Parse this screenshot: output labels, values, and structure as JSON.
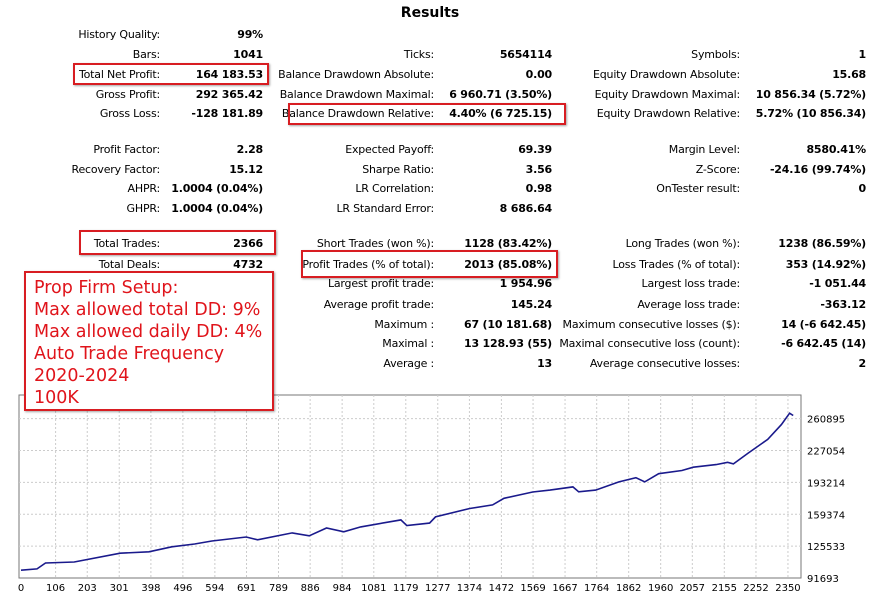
{
  "title": "Results",
  "stats": [
    [
      {
        "label": "History Quality:",
        "value": "99%"
      },
      null,
      null
    ],
    [
      {
        "label": "Bars:",
        "value": "1041"
      },
      {
        "label": "Ticks:",
        "value": "5654114"
      },
      {
        "label": "Symbols:",
        "value": "1"
      }
    ],
    [
      {
        "label": "Total Net Profit:",
        "value": "164 183.53"
      },
      {
        "label": "Balance Drawdown Absolute:",
        "value": "0.00"
      },
      {
        "label": "Equity Drawdown Absolute:",
        "value": "15.68"
      }
    ],
    [
      {
        "label": "Gross Profit:",
        "value": "292 365.42"
      },
      {
        "label": "Balance Drawdown Maximal:",
        "value": "6 960.71 (3.50%)"
      },
      {
        "label": "Equity Drawdown Maximal:",
        "value": "10 856.34 (5.72%)"
      }
    ],
    [
      {
        "label": "Gross Loss:",
        "value": "-128 181.89"
      },
      {
        "label": "Balance Drawdown Relative:",
        "value": "4.40% (6 725.15)"
      },
      {
        "label": "Equity Drawdown Relative:",
        "value": "5.72% (10 856.34)"
      }
    ],
    [
      {
        "label": "Profit Factor:",
        "value": "2.28"
      },
      {
        "label": "Expected Payoff:",
        "value": "69.39"
      },
      {
        "label": "Margin Level:",
        "value": "8580.41%"
      }
    ],
    [
      {
        "label": "Recovery Factor:",
        "value": "15.12"
      },
      {
        "label": "Sharpe Ratio:",
        "value": "3.56"
      },
      {
        "label": "Z-Score:",
        "value": "-24.16 (99.74%)"
      }
    ],
    [
      {
        "label": "AHPR:",
        "value": "1.0004 (0.04%)"
      },
      {
        "label": "LR Correlation:",
        "value": "0.98"
      },
      {
        "label": "OnTester result:",
        "value": "0"
      }
    ],
    [
      {
        "label": "GHPR:",
        "value": "1.0004 (0.04%)"
      },
      {
        "label": "LR Standard Error:",
        "value": "8 686.64"
      },
      null
    ],
    [
      {
        "label": "Total Trades:",
        "value": "2366"
      },
      {
        "label": "Short Trades (won %):",
        "value": "1128 (83.42%)"
      },
      {
        "label": "Long Trades (won %):",
        "value": "1238 (86.59%)"
      }
    ],
    [
      {
        "label": "Total Deals:",
        "value": "4732"
      },
      {
        "label": "Profit Trades (% of total):",
        "value": "2013 (85.08%)"
      },
      {
        "label": "Loss Trades (% of total):",
        "value": "353 (14.92%)"
      }
    ],
    [
      null,
      {
        "label": "Largest profit trade:",
        "value": "1 954.96"
      },
      {
        "label": "Largest loss trade:",
        "value": "-1 051.44"
      }
    ],
    [
      null,
      {
        "label": "Average profit trade:",
        "value": "145.24"
      },
      {
        "label": "Average loss trade:",
        "value": "-363.12"
      }
    ],
    [
      null,
      {
        "label": "Maximum :",
        "value": "67 (10 181.68)"
      },
      {
        "label": "Maximum consecutive losses ($):",
        "value": "14 (-6 642.45)"
      }
    ],
    [
      null,
      {
        "label": "Maximal :",
        "value": "13 128.93 (55)"
      },
      {
        "label": "Maximal consecutive loss (count):",
        "value": "-6 642.45 (14)"
      }
    ],
    [
      null,
      {
        "label": "Average :",
        "value": "13"
      },
      {
        "label": "Average consecutive losses:",
        "value": "2"
      }
    ]
  ],
  "annotation": {
    "lines": [
      "Prop Firm Setup:",
      "Max allowed total DD: 9%",
      "Max allowed daily DD: 4%",
      "Auto Trade Frequency",
      "2020-2024",
      "100K"
    ],
    "color": "#e0141b"
  },
  "highlight_color": "#d81d22",
  "chart_data": {
    "type": "line",
    "line_color": "#1a1a8c",
    "grid": true,
    "xlim": [
      0,
      2390
    ],
    "ylim": [
      91693,
      286000
    ],
    "x_ticks": [
      0,
      106,
      203,
      301,
      398,
      496,
      594,
      691,
      789,
      886,
      984,
      1081,
      1179,
      1277,
      1374,
      1472,
      1569,
      1667,
      1764,
      1862,
      1960,
      2057,
      2155,
      2252,
      2350
    ],
    "y_ticks": [
      91693,
      125533,
      159374,
      193214,
      227054,
      260895
    ],
    "series": [
      {
        "x": [
          0,
          49,
          75,
          163,
          304,
          392,
          462,
          532,
          585,
          690,
          725,
          831,
          883,
          936,
          989,
          1041,
          1164,
          1182,
          1252,
          1270,
          1375,
          1445,
          1480,
          1568,
          1621,
          1691,
          1709,
          1761,
          1832,
          1884,
          1911,
          1954,
          2025,
          2060,
          2130,
          2165,
          2183,
          2227,
          2288,
          2330,
          2355,
          2366
        ],
        "y": [
          100000,
          101400,
          107600,
          108700,
          118000,
          119500,
          124800,
          127800,
          131000,
          135200,
          132300,
          139600,
          136500,
          144800,
          140800,
          146000,
          153400,
          147300,
          150000,
          156600,
          165500,
          169300,
          176300,
          183000,
          185000,
          188400,
          183200,
          185000,
          193700,
          198200,
          193700,
          202400,
          205800,
          209300,
          212100,
          214500,
          212800,
          224000,
          238900,
          254600,
          266700,
          264183
        ]
      }
    ]
  }
}
